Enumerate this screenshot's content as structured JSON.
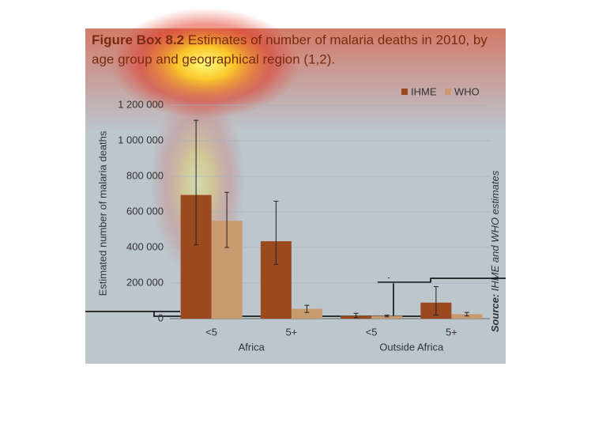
{
  "chart_data": {
    "type": "bar",
    "title_label": "Figure Box 8.2",
    "title": [
      "Estimates of number of malaria deaths in 2010, by",
      "age group and geographical region (1,2)."
    ],
    "y_label": "Estimated number of malaria deaths",
    "source_label": "Source:",
    "source": "IHME and WHO estimates",
    "categories": [
      "<5",
      "5+",
      "<5",
      "5+"
    ],
    "groups": [
      "Africa",
      "Outside Africa"
    ],
    "series": [
      {
        "name": "IHME",
        "color": "#9a4a1e",
        "values": [
          695000,
          435000,
          15000,
          90000
        ],
        "error_low": [
          415000,
          305000,
          5000,
          20000
        ],
        "error_high": [
          1115000,
          660000,
          30000,
          180000
        ]
      },
      {
        "name": "WHO",
        "color": "#c99a70",
        "values": [
          550000,
          55000,
          15000,
          25000
        ],
        "error_low": [
          400000,
          35000,
          10000,
          15000
        ],
        "error_high": [
          710000,
          75000,
          20000,
          35000
        ]
      }
    ],
    "ylim": [
      0,
      1200000
    ],
    "yticks": [
      0,
      {
        "value": 200000,
        "label": "200 000"
      },
      {
        "value": 400000,
        "label": "400 000"
      },
      {
        "value": 600000,
        "label": "600 000"
      },
      {
        "value": 800000,
        "label": "800 000"
      },
      {
        "value": 1000000,
        "label": "1 000 000"
      },
      {
        "value": 1200000,
        "label": "1 200 000"
      }
    ],
    "grid": true
  }
}
